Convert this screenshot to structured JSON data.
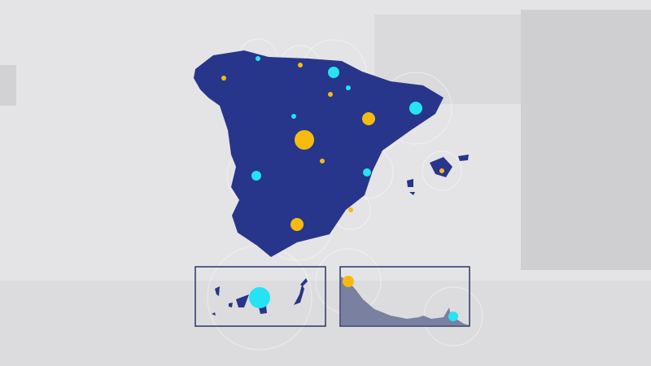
{
  "colors": {
    "background": "#e4e4e6",
    "land": "#27368a",
    "inset_land_ceuta_melilla": "#7a80a0",
    "marker_yellow": "#f7bb10",
    "marker_cyan": "#25e3f2",
    "inset_border": "#2a3468"
  },
  "map": {
    "regions": [
      "mainland-spain",
      "balearic-islands",
      "canary-islands-inset",
      "ceuta-melilla-inset"
    ],
    "marker_icons": [
      "yellow-circle-marker",
      "cyan-circle-marker"
    ]
  }
}
